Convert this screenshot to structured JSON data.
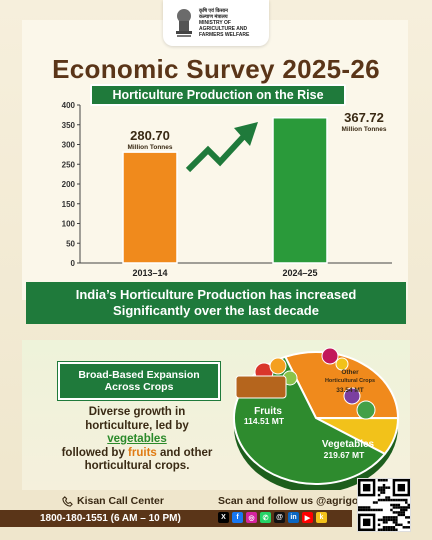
{
  "header": {
    "ministry_hindi": "कृषि एवं किसान\nकल्याण मंत्रालय",
    "ministry_english": "MINISTRY OF\nAGRICULTURE AND\nFARMERS WELFARE",
    "emblem_caption": "सत्यमेव जयते",
    "title": "Economic Survey 2025-26",
    "subtitle": "Horticulture Production on the Rise"
  },
  "chart_data": [
    {
      "type": "bar",
      "categories": [
        "2013–14",
        "2024–25"
      ],
      "values": [
        280.7,
        367.72
      ],
      "value_labels": [
        "280.70",
        "367.72"
      ],
      "unit_label": "Million Tonnes",
      "ylim": [
        0,
        400
      ],
      "yticks": [
        0,
        50,
        100,
        150,
        200,
        250,
        300,
        350,
        400
      ],
      "colors": [
        "#f08a1c",
        "#2a9a3a"
      ],
      "trend_arrow_color": "#1f7a3b"
    },
    {
      "type": "pie",
      "slices": [
        {
          "name": "Vegetables",
          "value": 219.67,
          "label": "219.67",
          "unit": "MT",
          "color": "#2e8b2e"
        },
        {
          "name": "Fruits",
          "value": 114.51,
          "label": "114.51",
          "unit": "MT",
          "color": "#f08a1c"
        },
        {
          "name": "Other Horticultural Crops",
          "value": 33.54,
          "label": "33.54",
          "unit": "MT",
          "color": "#f2c21a"
        }
      ]
    }
  ],
  "pie_labels": {
    "fruits": "Fruits",
    "fruits_value": "114.51",
    "vegetables": "Vegetables",
    "vegetables_value": "219.67",
    "other_line1": "Other",
    "other_line2": "Horticultural Crops",
    "other_value": "33.54",
    "unit": "MT"
  },
  "band": {
    "line1": "India’s Horticulture Production has increased",
    "line2": "Significantly over the last decade"
  },
  "broad": {
    "line1": "Broad-Based Expansion",
    "line2": "Across Crops"
  },
  "description": {
    "line1": "Diverse growth in",
    "line2": "horticulture, led by",
    "veg": "vegetables",
    "line3a": "followed by ",
    "fruits": "fruits",
    "line3b": " and other",
    "line4": "horticultural crops."
  },
  "footer": {
    "kisan_label": "Kisan Call Center",
    "phone": "1800-180-1551 (6 AM – 10 PM)",
    "scan_label": "Scan and follow us @agrigoi",
    "social_icons": [
      "x-icon",
      "facebook-icon",
      "instagram-icon",
      "whatsapp-icon",
      "threads-icon",
      "linkedin-icon",
      "youtube-icon",
      "koo-icon"
    ]
  }
}
